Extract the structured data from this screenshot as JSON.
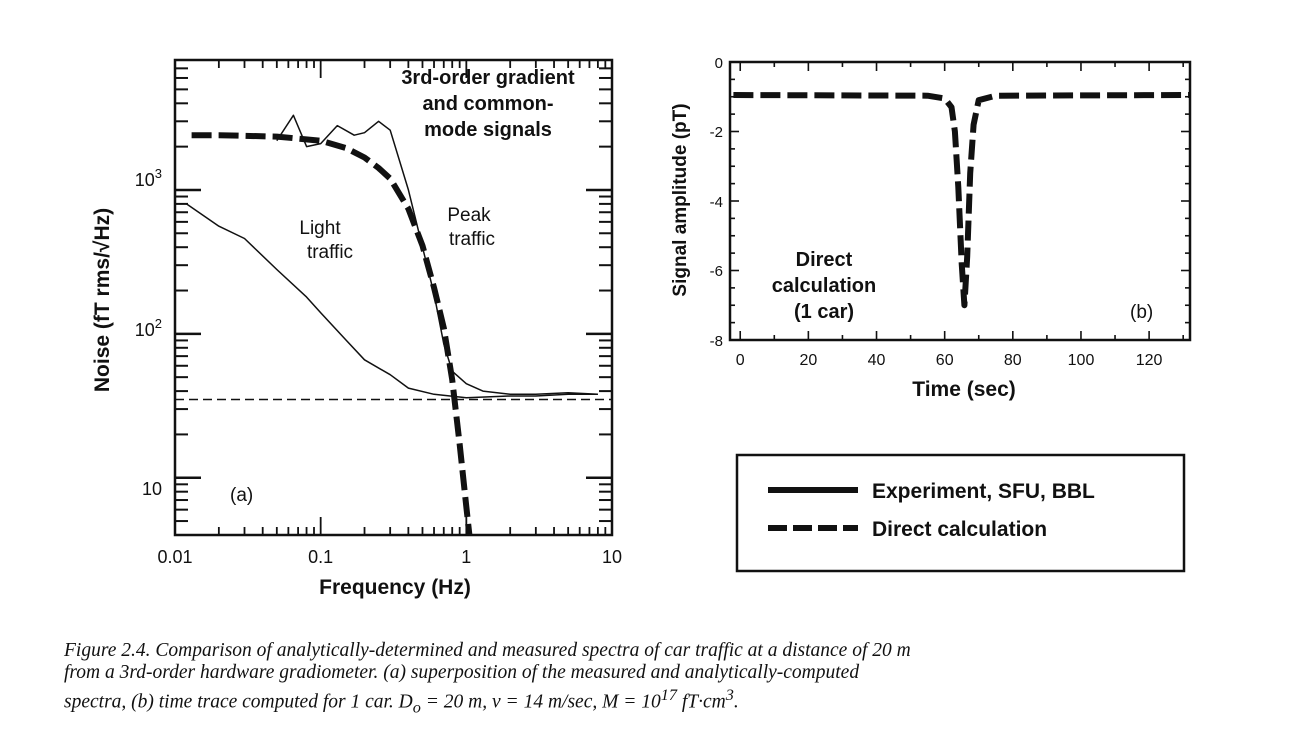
{
  "chart_data": [
    {
      "type": "line",
      "panel_label": "(a)",
      "xlabel": "Frequency (Hz)",
      "ylabel": "Noise (fT rms/√Hz)",
      "x_scale": "log",
      "y_scale": "log",
      "xlim": [
        0.01,
        10
      ],
      "ylim": [
        4,
        8000
      ],
      "x_tick_labels": [
        "0.01",
        "0.1",
        "1",
        "10"
      ],
      "y_tick_labels": [
        {
          "base": "10",
          "exp": ""
        },
        {
          "base": "10",
          "exp": "2"
        },
        {
          "base": "10",
          "exp": "3"
        }
      ],
      "annotations": [
        "3rd-order gradient",
        "and common-",
        "mode signals",
        "Light",
        "traffic",
        "Peak",
        "traffic"
      ],
      "series": [
        {
          "style": "thin-solid",
          "x": [
            0.012,
            0.02,
            0.03,
            0.05,
            0.08,
            0.1,
            0.15,
            0.2,
            0.3,
            0.4,
            0.6,
            1,
            2,
            3,
            5,
            8
          ],
          "y": [
            800,
            560,
            460,
            280,
            180,
            140,
            90,
            66,
            52,
            42,
            38,
            36,
            37,
            37,
            38,
            38
          ]
        },
        {
          "style": "thin-solid",
          "x": [
            0.05,
            0.065,
            0.08,
            0.1,
            0.13,
            0.17,
            0.2,
            0.25,
            0.3,
            0.4,
            0.5,
            0.6,
            0.7,
            0.8,
            1,
            1.3,
            2,
            3,
            5,
            8
          ],
          "y": [
            2200,
            3300,
            2000,
            2100,
            2800,
            2400,
            2500,
            3000,
            2600,
            1000,
            400,
            190,
            85,
            55,
            45,
            40,
            38,
            38,
            39,
            38
          ]
        },
        {
          "style": "thick-dashed",
          "x": [
            0.013,
            0.02,
            0.05,
            0.1,
            0.15,
            0.2,
            0.25,
            0.3,
            0.4,
            0.5,
            0.6,
            0.7,
            0.8,
            0.9,
            1.0,
            1.05
          ],
          "y": [
            2400,
            2400,
            2350,
            2200,
            1950,
            1680,
            1420,
            1200,
            740,
            410,
            210,
            110,
            48,
            17,
            6.3,
            4
          ]
        },
        {
          "style": "thin-dashed",
          "x": [
            0.01,
            10
          ],
          "y": [
            35,
            35
          ]
        }
      ]
    },
    {
      "type": "line",
      "panel_label": "(b)",
      "xlabel": "Time (sec)",
      "ylabel": "Signal amplitude (pT)",
      "xlim": [
        -3,
        132
      ],
      "ylim": [
        -8,
        0
      ],
      "x_tick_labels": [
        "0",
        "20",
        "40",
        "60",
        "80",
        "100",
        "120"
      ],
      "y_tick_labels": [
        "0",
        "-2",
        "-4",
        "-6",
        "-8"
      ],
      "annotations": [
        "Direct",
        "calculation",
        "(1 car)"
      ],
      "series": [
        {
          "name": "Direct calculation",
          "style": "thick-dashed",
          "x": [
            -2,
            55,
            60,
            62,
            63,
            64,
            65,
            65.8,
            66.6,
            67.5,
            68.5,
            70,
            75,
            132
          ],
          "y": [
            -0.95,
            -0.97,
            -1.05,
            -1.3,
            -2.0,
            -3.6,
            -5.8,
            -7.0,
            -5.6,
            -3.2,
            -1.8,
            -1.1,
            -0.97,
            -0.95
          ]
        }
      ]
    }
  ],
  "legend": [
    {
      "label": "Experiment, SFU, BBL",
      "style": "solid"
    },
    {
      "label": "Direct calculation",
      "style": "dashed"
    }
  ],
  "caption": {
    "label": "Figure 2.4.",
    "line1": "Comparison of analytically-determined and measured spectra of car traffic at a distance of 20 m",
    "line2": "from a 3rd-order hardware gradiometer. (a) superposition of the measured and analytically-computed",
    "line3_a": "spectra, (b) time trace computed for 1 car.  D",
    "line3_sub": "o",
    "line3_b": " = 20 m, v = 14 m/sec, M = 10",
    "line3_sup": "17",
    "line3_c": " fT·cm",
    "line3_sup2": "3",
    "line3_d": "."
  }
}
